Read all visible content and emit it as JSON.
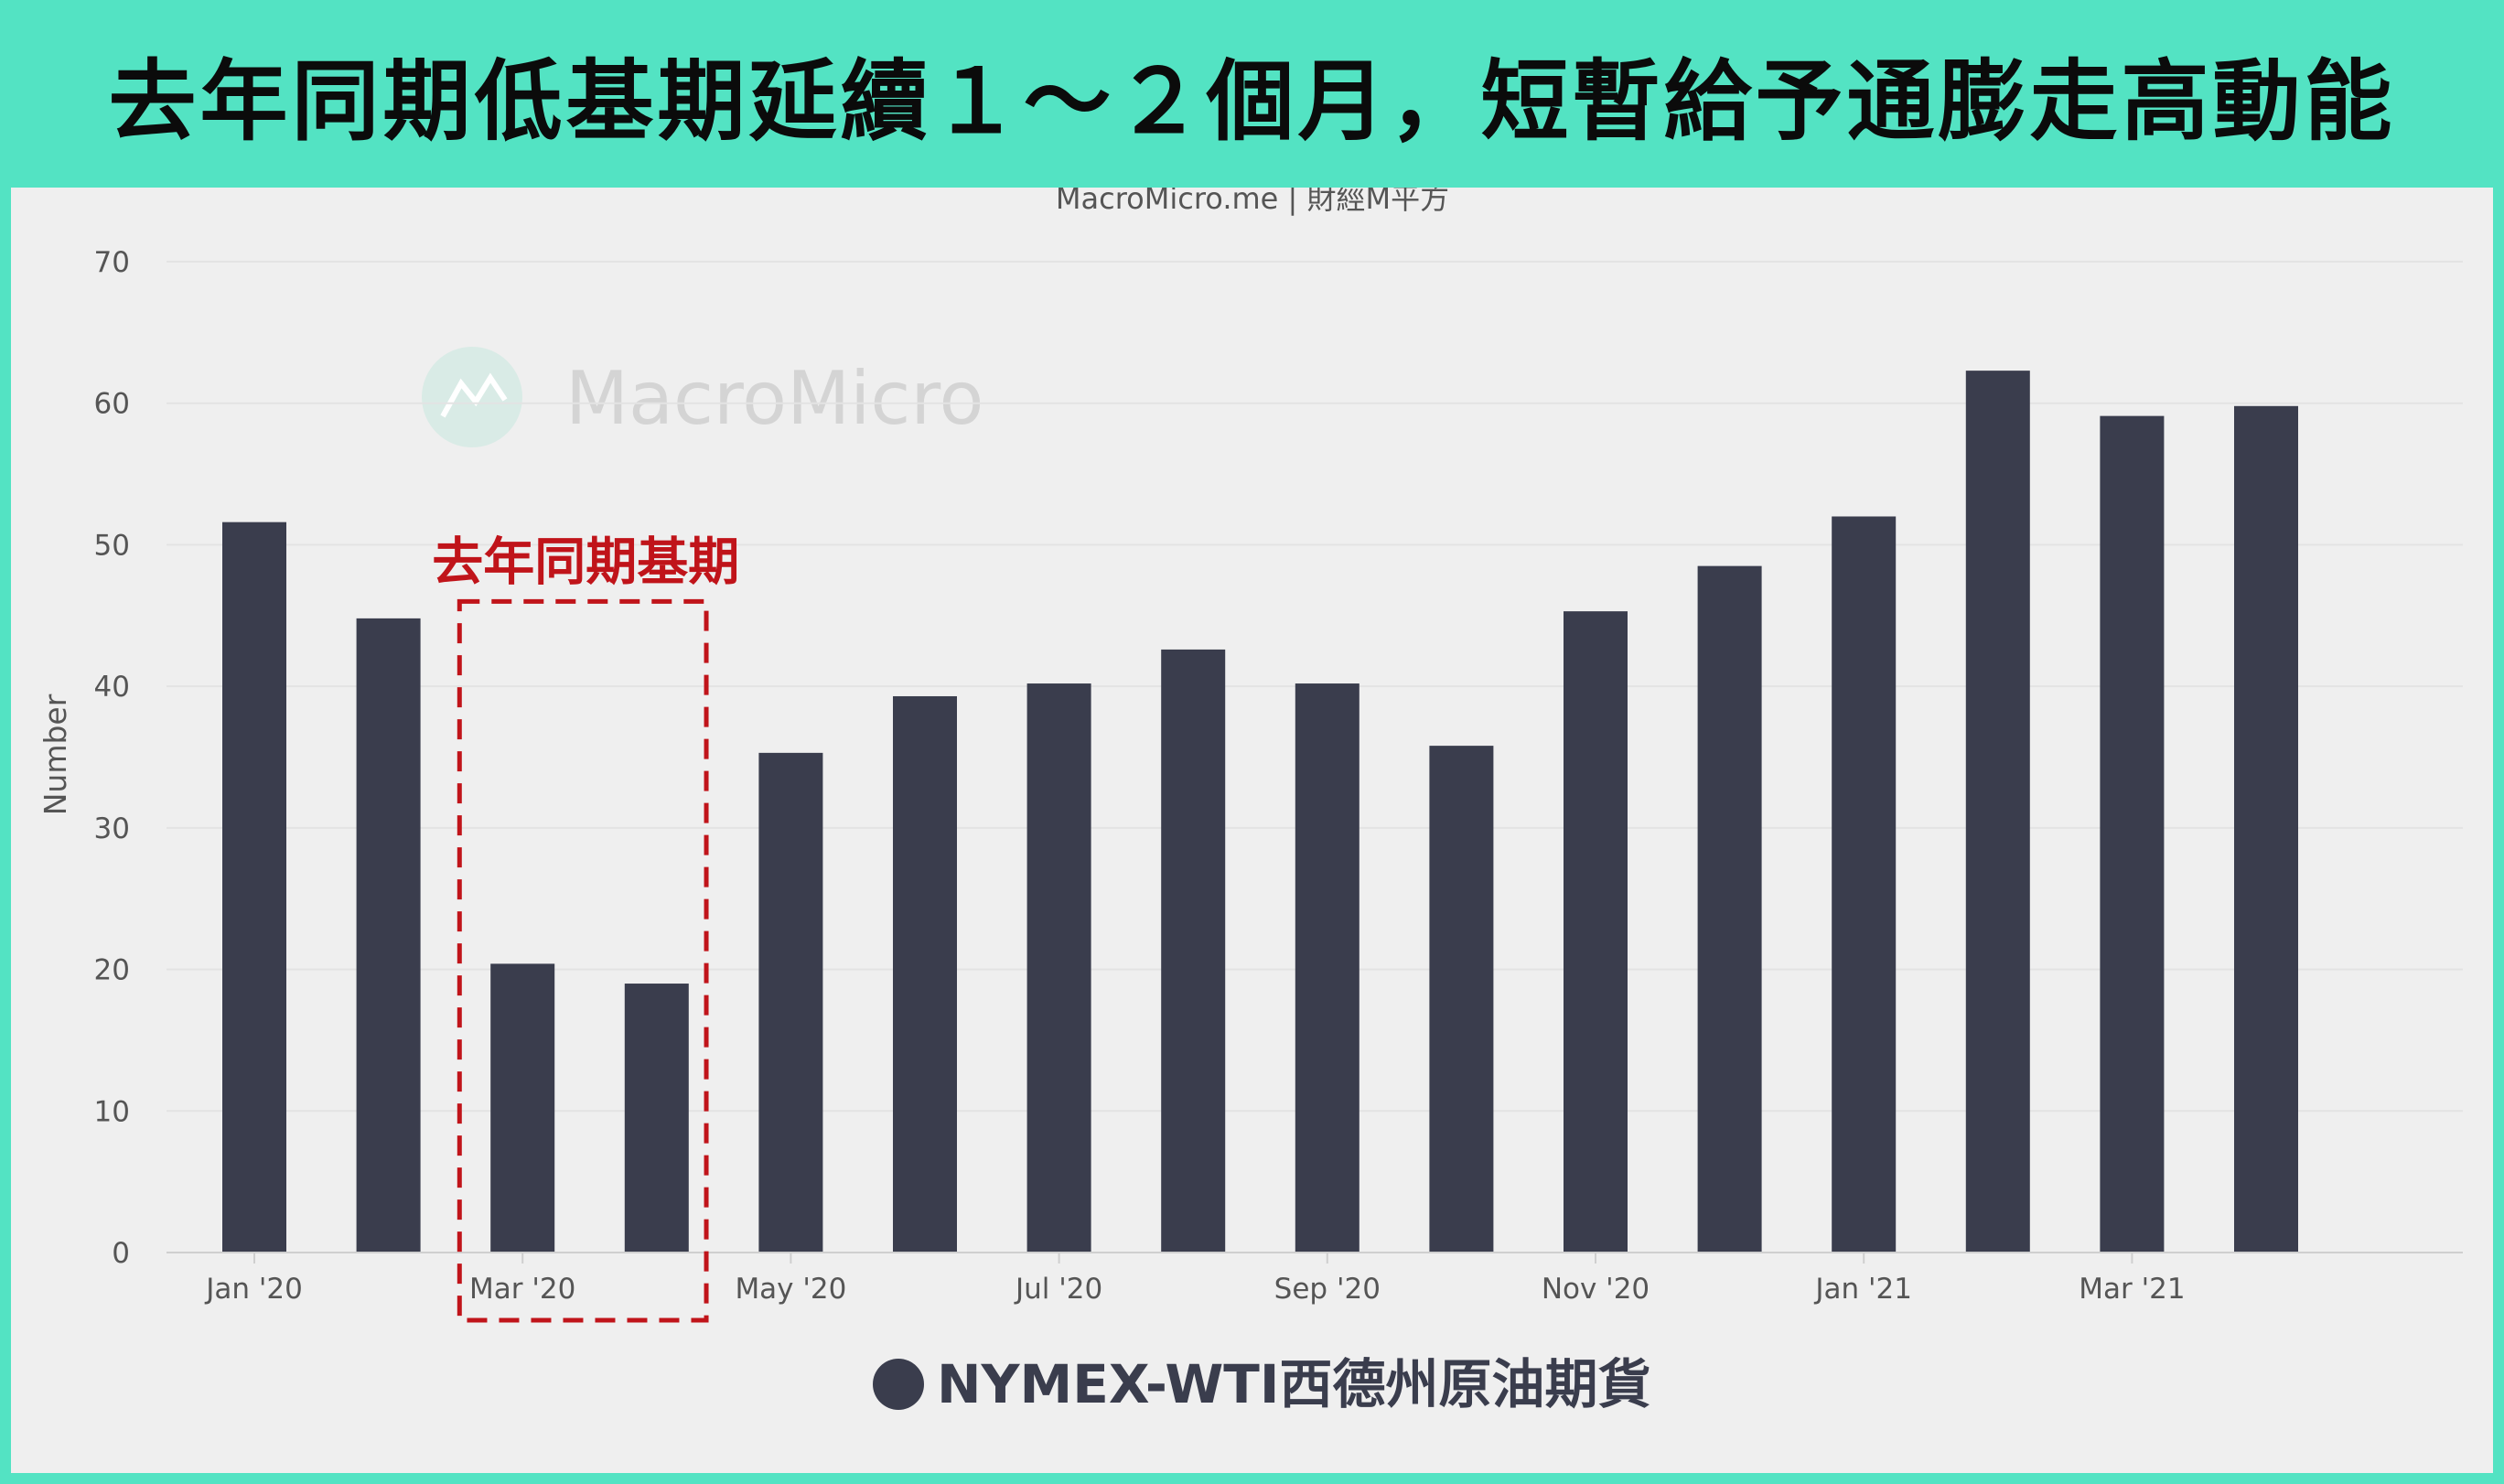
{
  "headline": "去年同期低基期延續１～２個月，短暫給予通膨走高動能",
  "source": "MacroMicro.me | 財經M平方",
  "watermark": "MacroMicro",
  "colors": {
    "frame": "#53e3c3",
    "bar": "#3a3d4d",
    "highlight": "#c0141a"
  },
  "chart_data": {
    "type": "bar",
    "ylabel": "Number",
    "ylim": [
      0,
      70
    ],
    "yticks": [
      0,
      10,
      20,
      30,
      40,
      50,
      60,
      70
    ],
    "grid": true,
    "legend_position": "bottom-center",
    "months": [
      "Jan 2020",
      "Feb 2020",
      "Mar 2020",
      "Apr 2020",
      "May 2020",
      "Jun 2020",
      "Jul 2020",
      "Aug 2020",
      "Sep 2020",
      "Oct 2020",
      "Nov 2020",
      "Dec 2020",
      "Jan 2021",
      "Feb 2021",
      "Mar 2021",
      "Apr 2021"
    ],
    "x_tick_labels": [
      {
        "month_index": 0,
        "label": "Jan '20"
      },
      {
        "month_index": 2,
        "label": "Mar '20"
      },
      {
        "month_index": 4,
        "label": "May '20"
      },
      {
        "month_index": 6,
        "label": "Jul '20"
      },
      {
        "month_index": 8,
        "label": "Sep '20"
      },
      {
        "month_index": 10,
        "label": "Nov '20"
      },
      {
        "month_index": 12,
        "label": "Jan '21"
      },
      {
        "month_index": 14,
        "label": "Mar '21"
      }
    ],
    "series": [
      {
        "name": "NYMEX-WTI西德州原油期貨",
        "values": [
          51.6,
          44.8,
          20.4,
          19.0,
          35.3,
          39.3,
          40.2,
          42.6,
          40.2,
          35.8,
          45.3,
          48.5,
          52.0,
          62.3,
          59.1,
          59.8
        ]
      }
    ],
    "annotations": [
      {
        "text": "去年同期基期",
        "month_range": [
          "Mar 2020",
          "Apr 2020"
        ]
      }
    ]
  }
}
